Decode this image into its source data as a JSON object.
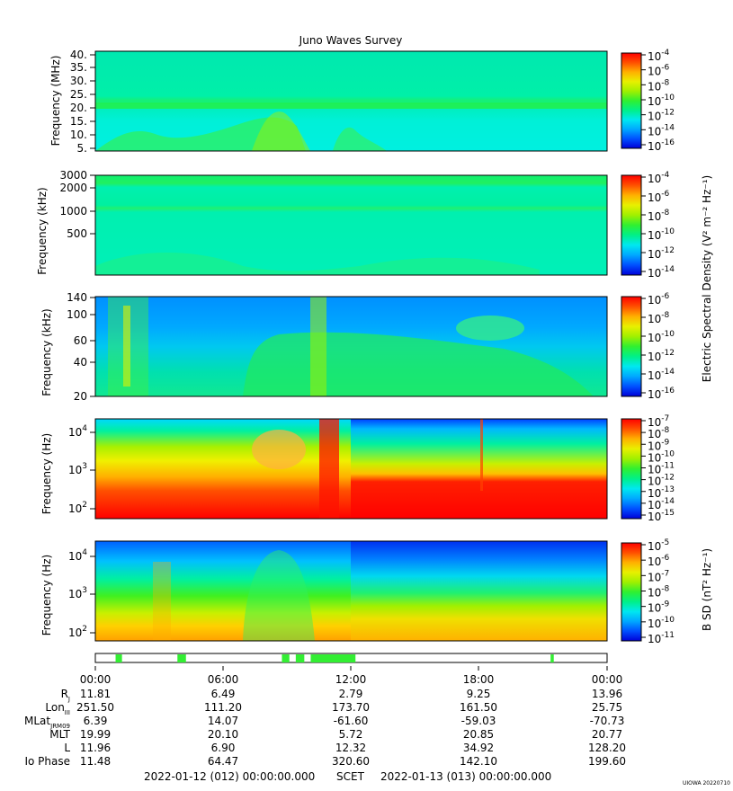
{
  "title": "Juno Waves Survey",
  "stamp": "UIOWA 20220710",
  "colorbar_colors": [
    "#0000d8",
    "#0050ff",
    "#00a8ff",
    "#00e8f0",
    "#00f088",
    "#30f030",
    "#a0f000",
    "#e8f000",
    "#ffb000",
    "#ff5000",
    "#ff0000"
  ],
  "chart_data": [
    {
      "type": "heatmap",
      "id": "hfr-high",
      "ylabel": "Frequency (MHz)",
      "y_ticks": [
        "40.",
        "35.",
        "30.",
        "25.",
        "20.",
        "15.",
        "10.",
        "5."
      ],
      "y_scale": "linear",
      "colorbar_ticks": [
        {
          "b": "10",
          "e": "-4"
        },
        {
          "b": "10",
          "e": "-6"
        },
        {
          "b": "10",
          "e": "-8"
        },
        {
          "b": "10",
          "e": "-10"
        },
        {
          "b": "10",
          "e": "-12"
        },
        {
          "b": "10",
          "e": "-14"
        },
        {
          "b": "10",
          "e": "-16"
        }
      ],
      "colorbar_unit": ""
    },
    {
      "type": "heatmap",
      "id": "hfr-low",
      "ylabel": "Frequency (kHz)",
      "y_ticks": [
        "3000",
        "2000",
        "1000",
        "500"
      ],
      "y_scale": "log",
      "colorbar_ticks": [
        {
          "b": "10",
          "e": "-4"
        },
        {
          "b": "10",
          "e": "-6"
        },
        {
          "b": "10",
          "e": "-8"
        },
        {
          "b": "10",
          "e": "-10"
        },
        {
          "b": "10",
          "e": "-12"
        },
        {
          "b": "10",
          "e": "-14"
        }
      ],
      "colorbar_unit": "Electric Spectral Density (V² m⁻² Hz⁻¹)"
    },
    {
      "type": "heatmap",
      "id": "lfr-high",
      "ylabel": "Frequency (kHz)",
      "y_ticks": [
        "140",
        "100",
        "60",
        "40",
        "20"
      ],
      "y_scale": "log",
      "colorbar_ticks": [
        {
          "b": "10",
          "e": "-6"
        },
        {
          "b": "10",
          "e": "-8"
        },
        {
          "b": "10",
          "e": "-10"
        },
        {
          "b": "10",
          "e": "-12"
        },
        {
          "b": "10",
          "e": "-14"
        },
        {
          "b": "10",
          "e": "-16"
        }
      ],
      "colorbar_unit": ""
    },
    {
      "type": "heatmap",
      "id": "lfr-low",
      "ylabel": "Frequency (Hz)",
      "y_ticks": [
        {
          "b": "10",
          "e": "4"
        },
        {
          "b": "10",
          "e": "3"
        },
        {
          "b": "10",
          "e": "2"
        }
      ],
      "y_scale": "log",
      "colorbar_ticks": [
        {
          "b": "10",
          "e": "-7"
        },
        {
          "b": "10",
          "e": "-8"
        },
        {
          "b": "10",
          "e": "-9"
        },
        {
          "b": "10",
          "e": "-10"
        },
        {
          "b": "10",
          "e": "-11"
        },
        {
          "b": "10",
          "e": "-12"
        },
        {
          "b": "10",
          "e": "-13"
        },
        {
          "b": "10",
          "e": "-14"
        },
        {
          "b": "10",
          "e": "-15"
        }
      ],
      "colorbar_unit": ""
    },
    {
      "type": "heatmap",
      "id": "magnetic",
      "ylabel": "Frequency (Hz)",
      "y_ticks": [
        {
          "b": "10",
          "e": "4"
        },
        {
          "b": "10",
          "e": "3"
        },
        {
          "b": "10",
          "e": "2"
        }
      ],
      "y_scale": "log",
      "colorbar_ticks": [
        {
          "b": "10",
          "e": "-5"
        },
        {
          "b": "10",
          "e": "-6"
        },
        {
          "b": "10",
          "e": "-7"
        },
        {
          "b": "10",
          "e": "-8"
        },
        {
          "b": "10",
          "e": "-9"
        },
        {
          "b": "10",
          "e": "-10"
        },
        {
          "b": "10",
          "e": "-11"
        }
      ],
      "colorbar_unit": "B SD (nT² Hz⁻¹)"
    }
  ],
  "mode_bar": {
    "segments_hours": [
      [
        0.95,
        1.25
      ],
      [
        3.85,
        4.25
      ],
      [
        8.75,
        9.1
      ],
      [
        9.4,
        9.8
      ],
      [
        10.1,
        12.2
      ],
      [
        21.35,
        21.5
      ]
    ]
  },
  "ephemeris": {
    "time_labels": [
      "00:00",
      "06:00",
      "12:00",
      "18:00",
      "00:00"
    ],
    "rows": [
      {
        "label": "R",
        "sub": "J",
        "values": [
          "11.81",
          "6.49",
          "2.79",
          "9.25",
          "13.96"
        ]
      },
      {
        "label": "Lon",
        "sub": "III",
        "values": [
          "251.50",
          "111.20",
          "173.70",
          "161.50",
          "25.75"
        ]
      },
      {
        "label": "MLat",
        "sub": "JRM09",
        "values": [
          "6.39",
          "14.07",
          "-61.60",
          "-59.03",
          "-70.73"
        ]
      },
      {
        "label": "MLT",
        "sub": "",
        "values": [
          "19.99",
          "20.10",
          "5.72",
          "20.85",
          "20.77"
        ]
      },
      {
        "label": "L",
        "sub": "",
        "values": [
          "11.96",
          "6.90",
          "12.32",
          "34.92",
          "128.20"
        ]
      },
      {
        "label": "Io Phase",
        "sub": "",
        "values": [
          "11.48",
          "64.47",
          "320.60",
          "142.10",
          "199.60"
        ]
      }
    ]
  },
  "scet": {
    "start": "2022-01-12 (012) 00:00:00.000",
    "label": "SCET",
    "end": "2022-01-13 (013) 00:00:00.000"
  }
}
